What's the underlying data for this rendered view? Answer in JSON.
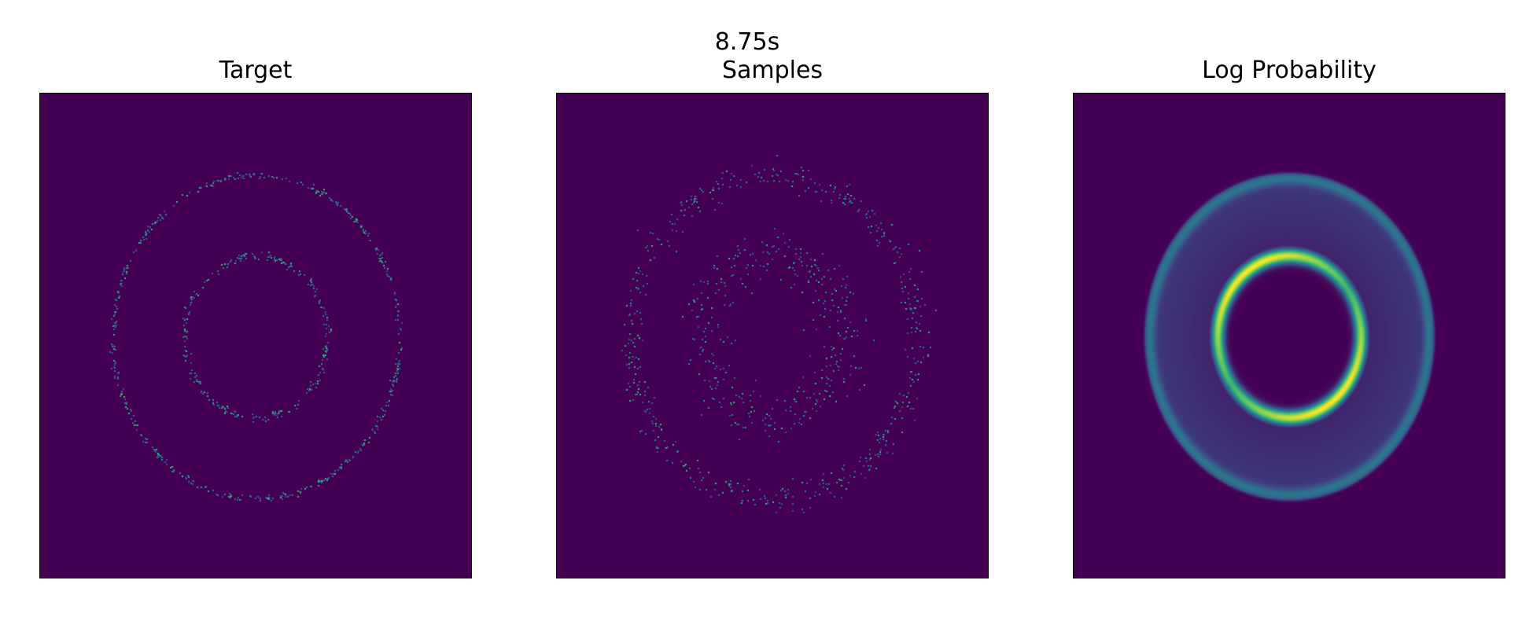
{
  "figure": {
    "suptitle": "8.75s"
  },
  "chart_data": [
    {
      "type": "heatmap",
      "title": "Target",
      "xlabel": "",
      "ylabel": "",
      "axes_ticks": false,
      "colormap": "viridis",
      "background_color": "#440154",
      "content": "point samples on two concentric rings",
      "rings": [
        {
          "name": "inner",
          "radius": 1.0
        },
        {
          "name": "outer",
          "radius": 2.0
        }
      ]
    },
    {
      "type": "heatmap",
      "title": "Samples",
      "xlabel": "",
      "ylabel": "",
      "axes_ticks": false,
      "colormap": "viridis",
      "background_color": "#440154",
      "content": "model samples scattered around two rings",
      "rings": [
        {
          "name": "inner",
          "radius": 1.0
        },
        {
          "name": "outer",
          "radius": 2.0
        }
      ]
    },
    {
      "type": "heatmap",
      "title": "Log Probability",
      "xlabel": "",
      "ylabel": "",
      "axes_ticks": false,
      "colormap": "viridis",
      "background_color": "#440154",
      "content": "smooth density: bright inner ring, dimmer outer annulus",
      "rings": [
        {
          "name": "inner",
          "radius": 1.0
        },
        {
          "name": "outer",
          "radius": 2.0
        }
      ]
    }
  ]
}
